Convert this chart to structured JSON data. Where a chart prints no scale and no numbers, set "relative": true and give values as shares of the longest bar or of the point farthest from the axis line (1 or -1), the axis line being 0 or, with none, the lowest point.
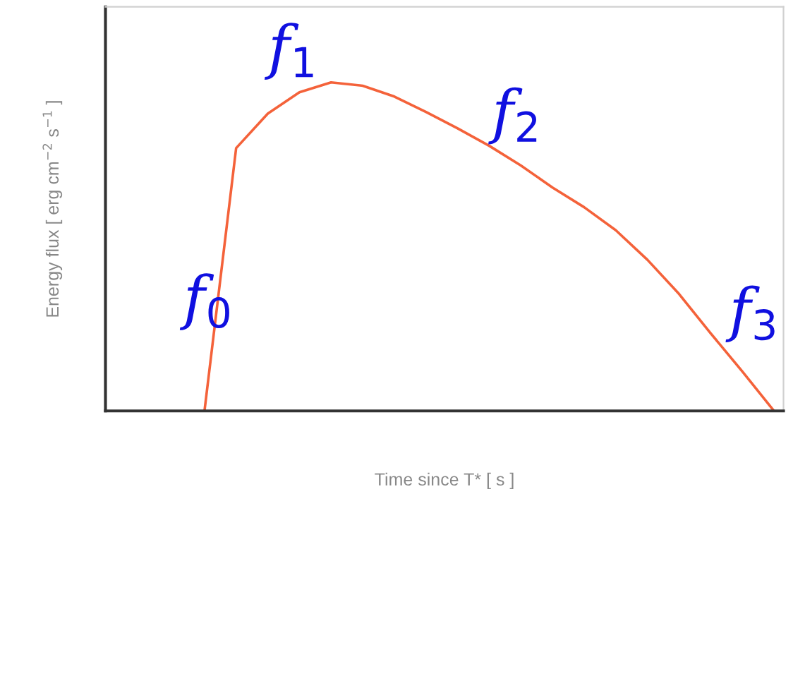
{
  "chart_data": {
    "type": "line",
    "relative": true,
    "xlabel": "Time since T* [ s ]",
    "ylabel": "Energy flux [ erg cm$^{−2}$ s$^{−1}$ ]",
    "categories": [
      null,
      null,
      null,
      null,
      null,
      null,
      null,
      null,
      null,
      null,
      null,
      null,
      null,
      null,
      null,
      null,
      null,
      null,
      null,
      null,
      null,
      null
    ],
    "series": [
      {
        "color": "#f4623a",
        "values": [
          null,
          null,
          null,
          0,
          0.8,
          0.905,
          0.97,
          1.0,
          0.99,
          0.957,
          0.91,
          0.86,
          0.807,
          0.747,
          0.68,
          0.62,
          0.55,
          0.46,
          0.356,
          0.236,
          0.12,
          0
        ]
      }
    ],
    "annotations": [
      "f$_{0}$",
      "f$_{1}$",
      "f$_{2}$",
      "f$_{3}$"
    ],
    "marker": "none",
    "line_style": "solid",
    "grid": false,
    "legend": false
  }
}
